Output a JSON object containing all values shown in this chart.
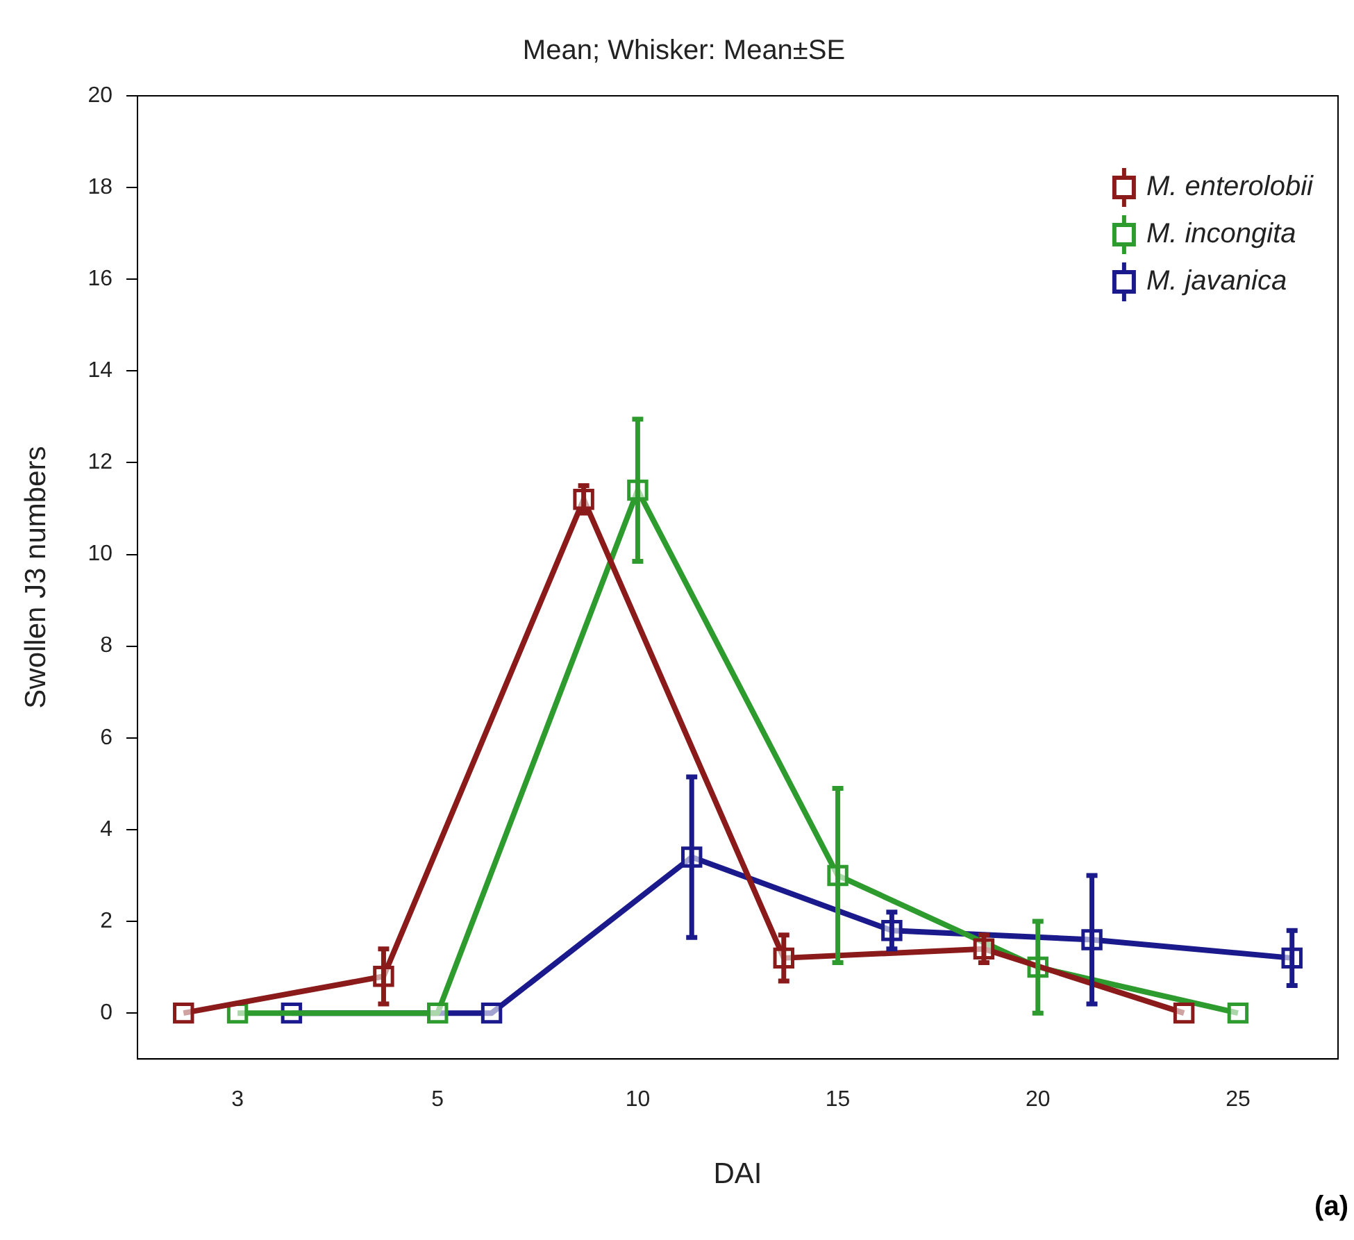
{
  "chart_data": {
    "type": "line",
    "title": "Mean; Whisker: Mean±SE",
    "xlabel": "DAI",
    "ylabel": "Swollen J3 numbers",
    "categories": [
      "3",
      "5",
      "10",
      "15",
      "20",
      "25"
    ],
    "series": [
      {
        "name": "M. enterolobii",
        "color": "#8b1a1a",
        "values": [
          0,
          0.8,
          11.2,
          1.2,
          1.4,
          0
        ],
        "errors": [
          null,
          0.6,
          0.3,
          0.5,
          0.3,
          null
        ]
      },
      {
        "name": "M. incongita",
        "color": "#2e9b2e",
        "values": [
          0,
          0,
          11.4,
          3.0,
          1.0,
          0
        ],
        "errors": [
          null,
          null,
          1.55,
          1.9,
          1.0,
          null
        ]
      },
      {
        "name": "M. javanica",
        "color": "#1a1a8c",
        "values": [
          0,
          0,
          3.4,
          1.8,
          1.6,
          1.2
        ],
        "errors": [
          null,
          null,
          1.75,
          0.4,
          1.4,
          0.6
        ]
      }
    ],
    "ylim": [
      -1,
      20
    ],
    "yticks": [
      0,
      2,
      4,
      6,
      8,
      10,
      12,
      14,
      16,
      18,
      20
    ],
    "marker": "square",
    "legend": "top right",
    "grid": false,
    "annotations": [
      "(a)"
    ]
  }
}
